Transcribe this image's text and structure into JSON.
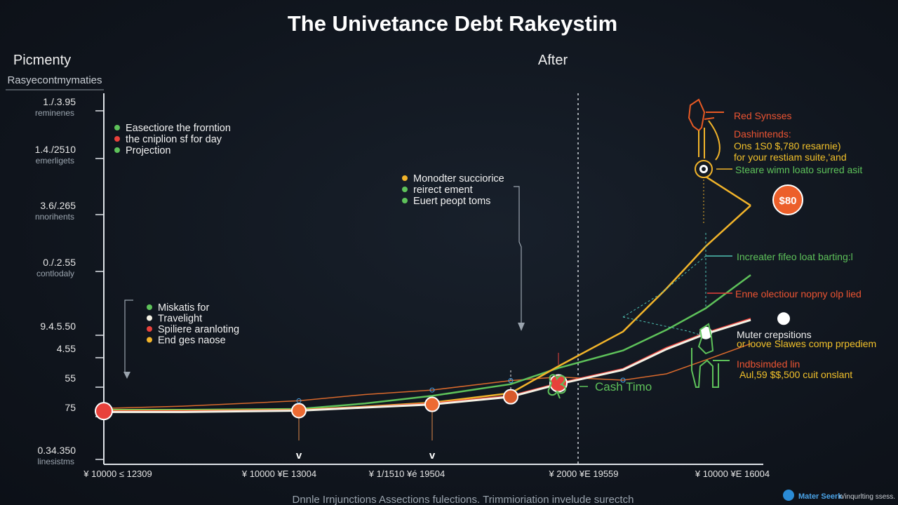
{
  "chart_data": {
    "type": "line",
    "title": "The Univetance Debt Rakeystim",
    "section_left": "Picmenty",
    "section_right": "After",
    "y_axis_header": "Rasyecontmymaties",
    "y_ticks": [
      {
        "label": "1./.3.95",
        "sub": "reminenes"
      },
      {
        "label": "1.4./2510",
        "sub": "emerligets"
      },
      {
        "label": "3.6/.265",
        "sub": "nnorihents"
      },
      {
        "label": "0./.2.55",
        "sub": "contlodaly"
      },
      {
        "label": "9.4.5.50",
        "sub": ""
      },
      {
        "label": "4.55",
        "sub": ""
      },
      {
        "label": "55",
        "sub": ""
      },
      {
        "label": "75",
        "sub": ""
      },
      {
        "label": "0.34.350",
        "sub": "linesistms"
      }
    ],
    "x_ticks": [
      "¥ 10000 ≤ 12309",
      "¥ 10000 ¥Е 13004",
      "¥ 1/1510 ¥é 19504",
      "¥ 2000 ¥Е 19559",
      "¥ 10000 ¥Е 16004"
    ],
    "x_markers": [
      "v",
      "v"
    ],
    "x": [
      0,
      1,
      2,
      3,
      4,
      5,
      6,
      7,
      8,
      9,
      10,
      11
    ],
    "series": [
      {
        "name": "Esectiore the frorntion",
        "color": "#d9692c",
        "values": [
          8.2,
          8.7,
          9.9,
          11.3,
          12.3,
          14.4,
          15.2,
          14.5,
          15.9,
          19.0,
          22.6,
          24.9
        ]
      },
      {
        "name": "Projection",
        "color": "#5ec25a",
        "values": [
          7.9,
          7.9,
          8.1,
          9.3,
          11.0,
          13.6,
          17.2,
          21.1,
          25.7,
          30.5,
          37.9,
          42.1
        ]
      },
      {
        "name": "End ges naose",
        "color": "#f2b42a",
        "values": [
          7.7,
          7.7,
          7.9,
          8.6,
          9.5,
          11.6,
          17.6,
          25.3,
          34.9,
          44.3,
          53.4,
          60.1
        ]
      },
      {
        "name": "Spiliere aranloting",
        "color": "#e8413b",
        "values": [
          7.6,
          7.6,
          7.8,
          8.5,
          9.3,
          11.0,
          13.8,
          17.0,
          21.7,
          25.0,
          28.2,
          30.3
        ]
      },
      {
        "name": "Travelight",
        "color": "#f4f1e4",
        "values": [
          7.4,
          7.4,
          7.7,
          8.4,
          9.1,
          10.8,
          13.6,
          16.8,
          21.4,
          24.8,
          27.9,
          30.2
        ]
      }
    ],
    "legend_top": [
      {
        "label": "Easectiore the frorntion",
        "color": "#5ec25a"
      },
      {
        "label": "the cniplion sf for day",
        "color": "#e8413b"
      },
      {
        "label": "Projection",
        "color": "#5ec25a"
      }
    ],
    "legend_mid": [
      {
        "label": "Monodter succiorice",
        "color": "#f2b42a"
      },
      {
        "label": "reirect ement",
        "color": "#5ec25a"
      },
      {
        "label": "Euert peopt toms",
        "color": "#5ec25a"
      }
    ],
    "legend_low": [
      {
        "label": "Miskatis for",
        "color": "#5ec25a"
      },
      {
        "label": "Travelight",
        "color": "#f4f1e4"
      },
      {
        "label": "Spiliere aranloting",
        "color": "#e8413b"
      },
      {
        "label": "End ges naose",
        "color": "#f2b42a"
      }
    ],
    "annotations": {
      "red_synsses": "Red Synsses",
      "dashintends": "Dashintends:",
      "ons_line": "Ons 1S0 $,780 resarnie)",
      "for_your": "for your restiam suite,'and",
      "steare": "Steare wimn loato surred asit",
      "badge": "$80",
      "increater": "Increater fifeo loat barting:l",
      "enne": "Enne olectiour nopny olp lied",
      "muter": "Muter crepsitions",
      "or_loove": "or loove Slawes comp prpediem",
      "indbsinded": "Indbsimded lin",
      "aul": "Aul,59 $$,500 cuit onslant",
      "cash": "Cash Timo"
    },
    "footer": "Dnnle Irnjunctions Assections fulections. Trimmioriation invelude surectch",
    "watermark_strong": "Mater Seerk",
    "watermark_light": "n/inqurlting ssess.",
    "grid": false,
    "legend_position": "top-left"
  }
}
